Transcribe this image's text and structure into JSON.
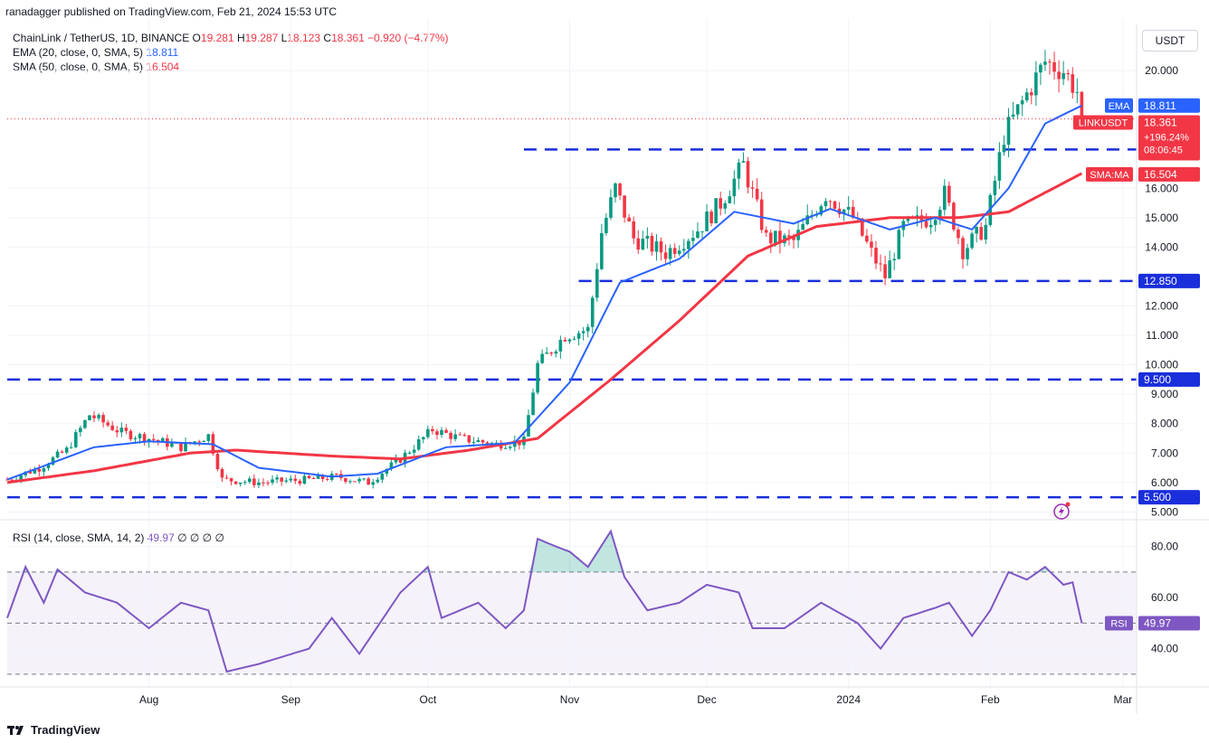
{
  "header": {
    "published": "ranadagger published on TradingView.com, Feb 21, 2024 15:53 UTC"
  },
  "legend": {
    "symbol": "ChainLink / TetherUS, 1D, BINANCE",
    "o_label": "O",
    "o": "19.281",
    "h_label": "H",
    "h": "19.287",
    "l_label": "L",
    "l": "18.123",
    "c_label": "C",
    "c": "18.361",
    "change": "−0.920 (−4.77%)",
    "ema_label": "EMA (20, close, 0, SMA, 5)",
    "ema_value": "18.811",
    "sma_label": "SMA (50, close, 0, SMA, 5)",
    "sma_value": "16.504"
  },
  "rsi_legend": {
    "label": "RSI (14, close, SMA, 14, 2)",
    "value": "49.97",
    "extras": "∅ ∅ ∅ ∅"
  },
  "currency_button": "USDT",
  "brand": "TradingView",
  "colors": {
    "up": "#089981",
    "down": "#f23645",
    "ema": "#2962ff",
    "sma": "#f23645",
    "rsi": "#7e57c2",
    "level": "#1a2edb"
  },
  "chart_data": {
    "type": "line",
    "series_type_main": "candlestick",
    "price_axis_ticks": [
      "5.000",
      "6.000",
      "7.000",
      "8.000",
      "9.000",
      "10.000",
      "11.000",
      "12.000",
      "14.000",
      "15.000",
      "16.000",
      "20.000"
    ],
    "price_ylim": [
      4.95,
      21.6
    ],
    "x_tick_labels": [
      "Aug",
      "Sep",
      "Oct",
      "Nov",
      "Dec",
      "2024",
      "Feb",
      "Mar"
    ],
    "x_tick_dates": [
      "2023-08-01",
      "2023-09-01",
      "2023-10-01",
      "2023-11-01",
      "2023-12-01",
      "2024-01-01",
      "2024-02-01",
      "2024-03-01"
    ],
    "xlim": [
      "2023-07-01",
      "2024-03-04"
    ],
    "support_resistance": [
      {
        "value": 5.5,
        "label": "5.500"
      },
      {
        "value": 9.5,
        "label": "9.500"
      },
      {
        "value": 12.85,
        "label": "12.850"
      },
      {
        "value": 17.32,
        "label": "17.320"
      }
    ],
    "price_badges": {
      "ema": {
        "name": "EMA",
        "value": "18.811"
      },
      "last": {
        "name": "LINKUSDT",
        "value": "18.361",
        "change": "+196.24%",
        "countdown": "08:06:45"
      },
      "sma": {
        "name": "SMA:MA",
        "value": "16.504"
      }
    },
    "price_anchors": [
      {
        "date": "2023-07-01",
        "value": 6.1
      },
      {
        "date": "2023-07-08",
        "value": 6.5
      },
      {
        "date": "2023-07-14",
        "value": 7.1
      },
      {
        "date": "2023-07-19",
        "value": 8.3
      },
      {
        "date": "2023-07-26",
        "value": 7.7
      },
      {
        "date": "2023-08-01",
        "value": 7.5
      },
      {
        "date": "2023-08-08",
        "value": 7.2
      },
      {
        "date": "2023-08-14",
        "value": 7.6
      },
      {
        "date": "2023-08-17",
        "value": 6.1
      },
      {
        "date": "2023-08-25",
        "value": 6.0
      },
      {
        "date": "2023-09-05",
        "value": 6.1
      },
      {
        "date": "2023-09-11",
        "value": 6.2
      },
      {
        "date": "2023-09-18",
        "value": 6.0
      },
      {
        "date": "2023-09-25",
        "value": 6.8
      },
      {
        "date": "2023-10-02",
        "value": 7.8
      },
      {
        "date": "2023-10-08",
        "value": 7.5
      },
      {
        "date": "2023-10-16",
        "value": 7.3
      },
      {
        "date": "2023-10-22",
        "value": 7.4
      },
      {
        "date": "2023-10-25",
        "value": 10.0
      },
      {
        "date": "2023-10-31",
        "value": 11.0
      },
      {
        "date": "2023-11-05",
        "value": 11.2
      },
      {
        "date": "2023-11-08",
        "value": 14.5
      },
      {
        "date": "2023-11-11",
        "value": 16.0
      },
      {
        "date": "2023-11-15",
        "value": 14.3
      },
      {
        "date": "2023-11-22",
        "value": 13.8
      },
      {
        "date": "2023-11-29",
        "value": 14.6
      },
      {
        "date": "2023-12-04",
        "value": 15.5
      },
      {
        "date": "2023-12-09",
        "value": 16.8
      },
      {
        "date": "2023-12-14",
        "value": 14.3
      },
      {
        "date": "2023-12-20",
        "value": 14.2
      },
      {
        "date": "2023-12-27",
        "value": 15.8
      },
      {
        "date": "2024-01-02",
        "value": 15.0
      },
      {
        "date": "2024-01-06",
        "value": 13.8
      },
      {
        "date": "2024-01-09",
        "value": 13.0
      },
      {
        "date": "2024-01-13",
        "value": 14.7
      },
      {
        "date": "2024-01-19",
        "value": 15.0
      },
      {
        "date": "2024-01-22",
        "value": 15.8
      },
      {
        "date": "2024-01-26",
        "value": 13.9
      },
      {
        "date": "2024-01-31",
        "value": 14.7
      },
      {
        "date": "2024-02-04",
        "value": 17.8
      },
      {
        "date": "2024-02-09",
        "value": 19.2
      },
      {
        "date": "2024-02-13",
        "value": 20.3
      },
      {
        "date": "2024-02-17",
        "value": 20.0
      },
      {
        "date": "2024-02-20",
        "value": 19.3
      },
      {
        "date": "2024-02-21",
        "value": 18.361
      }
    ],
    "ema_anchors": [
      {
        "date": "2023-07-01",
        "value": 6.1
      },
      {
        "date": "2023-07-20",
        "value": 7.2
      },
      {
        "date": "2023-08-01",
        "value": 7.4
      },
      {
        "date": "2023-08-15",
        "value": 7.3
      },
      {
        "date": "2023-08-25",
        "value": 6.5
      },
      {
        "date": "2023-09-10",
        "value": 6.2
      },
      {
        "date": "2023-09-20",
        "value": 6.3
      },
      {
        "date": "2023-10-05",
        "value": 7.2
      },
      {
        "date": "2023-10-20",
        "value": 7.35
      },
      {
        "date": "2023-11-01",
        "value": 9.4
      },
      {
        "date": "2023-11-12",
        "value": 12.8
      },
      {
        "date": "2023-11-25",
        "value": 13.6
      },
      {
        "date": "2023-12-07",
        "value": 15.2
      },
      {
        "date": "2023-12-20",
        "value": 14.8
      },
      {
        "date": "2023-12-28",
        "value": 15.3
      },
      {
        "date": "2024-01-10",
        "value": 14.6
      },
      {
        "date": "2024-01-20",
        "value": 15.0
      },
      {
        "date": "2024-01-28",
        "value": 14.6
      },
      {
        "date": "2024-02-05",
        "value": 16.0
      },
      {
        "date": "2024-02-13",
        "value": 18.2
      },
      {
        "date": "2024-02-21",
        "value": 18.811
      }
    ],
    "sma_anchors": [
      {
        "date": "2023-07-01",
        "value": 6.0
      },
      {
        "date": "2023-07-20",
        "value": 6.4
      },
      {
        "date": "2023-08-10",
        "value": 7.0
      },
      {
        "date": "2023-08-20",
        "value": 7.1
      },
      {
        "date": "2023-09-10",
        "value": 6.9
      },
      {
        "date": "2023-09-25",
        "value": 6.8
      },
      {
        "date": "2023-10-10",
        "value": 7.1
      },
      {
        "date": "2023-10-25",
        "value": 7.5
      },
      {
        "date": "2023-11-10",
        "value": 9.5
      },
      {
        "date": "2023-11-25",
        "value": 11.5
      },
      {
        "date": "2023-12-10",
        "value": 13.7
      },
      {
        "date": "2023-12-25",
        "value": 14.7
      },
      {
        "date": "2024-01-10",
        "value": 15.0
      },
      {
        "date": "2024-01-25",
        "value": 15.0
      },
      {
        "date": "2024-02-05",
        "value": 15.2
      },
      {
        "date": "2024-02-21",
        "value": 16.504
      }
    ],
    "rsi": {
      "ticks": [
        "40.00",
        "60.00",
        "80.00"
      ],
      "ylim": [
        25,
        88
      ],
      "overbought": 70,
      "oversold": 30,
      "middle": 50,
      "badge": {
        "name": "RSI",
        "value": "49.97"
      },
      "anchors": [
        {
          "date": "2023-07-01",
          "value": 52
        },
        {
          "date": "2023-07-05",
          "value": 72
        },
        {
          "date": "2023-07-09",
          "value": 58
        },
        {
          "date": "2023-07-12",
          "value": 71
        },
        {
          "date": "2023-07-18",
          "value": 62
        },
        {
          "date": "2023-07-25",
          "value": 58
        },
        {
          "date": "2023-08-01",
          "value": 48
        },
        {
          "date": "2023-08-08",
          "value": 58
        },
        {
          "date": "2023-08-14",
          "value": 55
        },
        {
          "date": "2023-08-18",
          "value": 31
        },
        {
          "date": "2023-08-25",
          "value": 34
        },
        {
          "date": "2023-09-05",
          "value": 40
        },
        {
          "date": "2023-09-10",
          "value": 52
        },
        {
          "date": "2023-09-16",
          "value": 38
        },
        {
          "date": "2023-09-25",
          "value": 62
        },
        {
          "date": "2023-10-01",
          "value": 72
        },
        {
          "date": "2023-10-04",
          "value": 52
        },
        {
          "date": "2023-10-12",
          "value": 58
        },
        {
          "date": "2023-10-18",
          "value": 48
        },
        {
          "date": "2023-10-22",
          "value": 55
        },
        {
          "date": "2023-10-25",
          "value": 83
        },
        {
          "date": "2023-10-29",
          "value": 80
        },
        {
          "date": "2023-11-01",
          "value": 78
        },
        {
          "date": "2023-11-05",
          "value": 72
        },
        {
          "date": "2023-11-10",
          "value": 86
        },
        {
          "date": "2023-11-13",
          "value": 68
        },
        {
          "date": "2023-11-18",
          "value": 55
        },
        {
          "date": "2023-11-25",
          "value": 58
        },
        {
          "date": "2023-12-01",
          "value": 65
        },
        {
          "date": "2023-12-08",
          "value": 62
        },
        {
          "date": "2023-12-11",
          "value": 48
        },
        {
          "date": "2023-12-18",
          "value": 48
        },
        {
          "date": "2023-12-26",
          "value": 58
        },
        {
          "date": "2024-01-03",
          "value": 50
        },
        {
          "date": "2024-01-08",
          "value": 40
        },
        {
          "date": "2024-01-13",
          "value": 52
        },
        {
          "date": "2024-01-20",
          "value": 56
        },
        {
          "date": "2024-01-23",
          "value": 58
        },
        {
          "date": "2024-01-28",
          "value": 45
        },
        {
          "date": "2024-02-01",
          "value": 55
        },
        {
          "date": "2024-02-05",
          "value": 70
        },
        {
          "date": "2024-02-09",
          "value": 67
        },
        {
          "date": "2024-02-13",
          "value": 72
        },
        {
          "date": "2024-02-17",
          "value": 65
        },
        {
          "date": "2024-02-19",
          "value": 66
        },
        {
          "date": "2024-02-21",
          "value": 49.97
        }
      ]
    }
  }
}
